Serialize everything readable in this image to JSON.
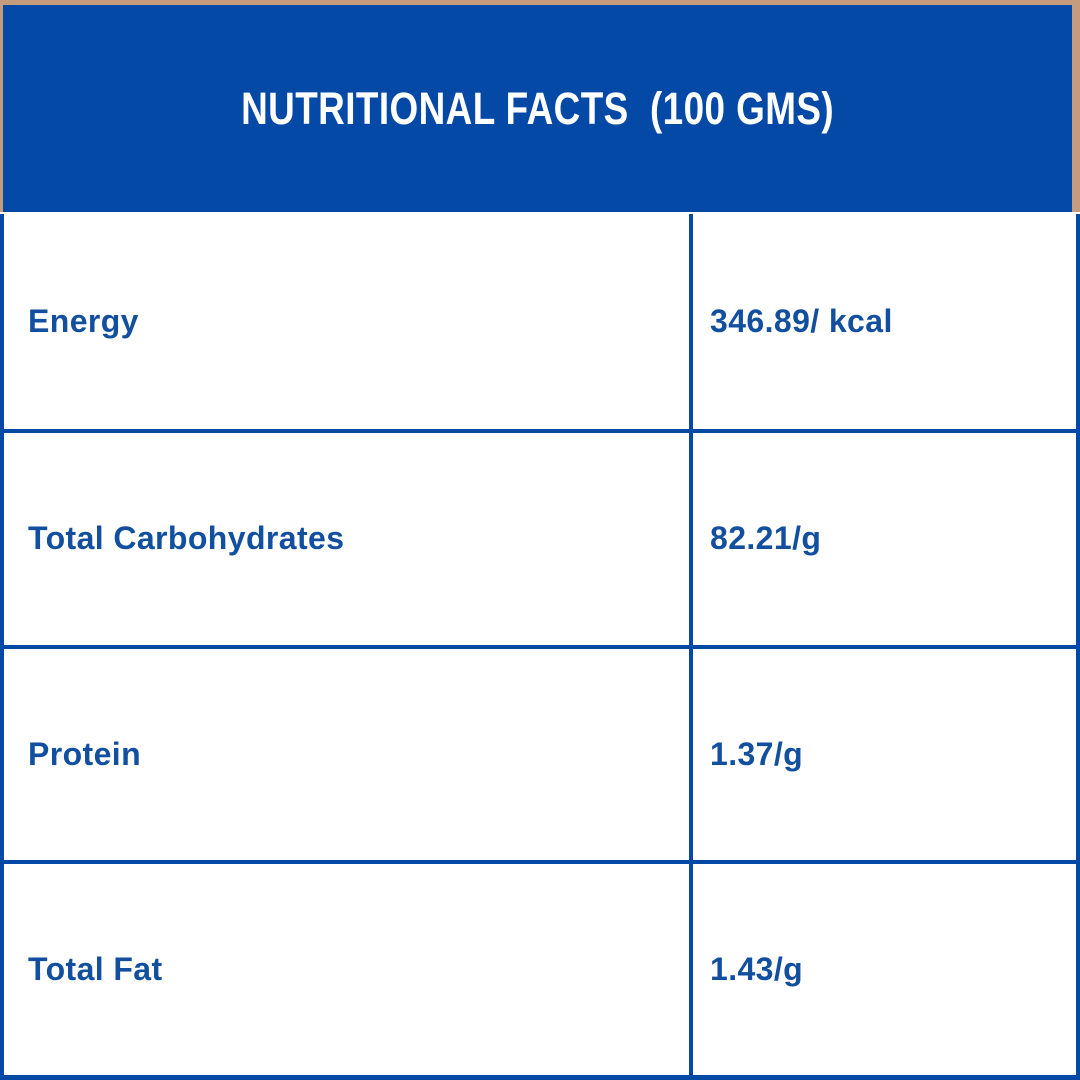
{
  "header": {
    "title": "NUTRITIONAL FACTS  (100 GMS)"
  },
  "table": {
    "rows": [
      {
        "label": "Energy",
        "value": "346.89/ kcal"
      },
      {
        "label": "Total Carbohydrates",
        "value": "82.21/g"
      },
      {
        "label": "Protein",
        "value": "1.37/g"
      },
      {
        "label": "Total Fat",
        "value": "1.43/g"
      }
    ]
  },
  "colors": {
    "brand_blue": "#0549a6",
    "text_blue": "#124f9f",
    "frame_tan": "#c59c7e",
    "background": "#ffffff"
  }
}
